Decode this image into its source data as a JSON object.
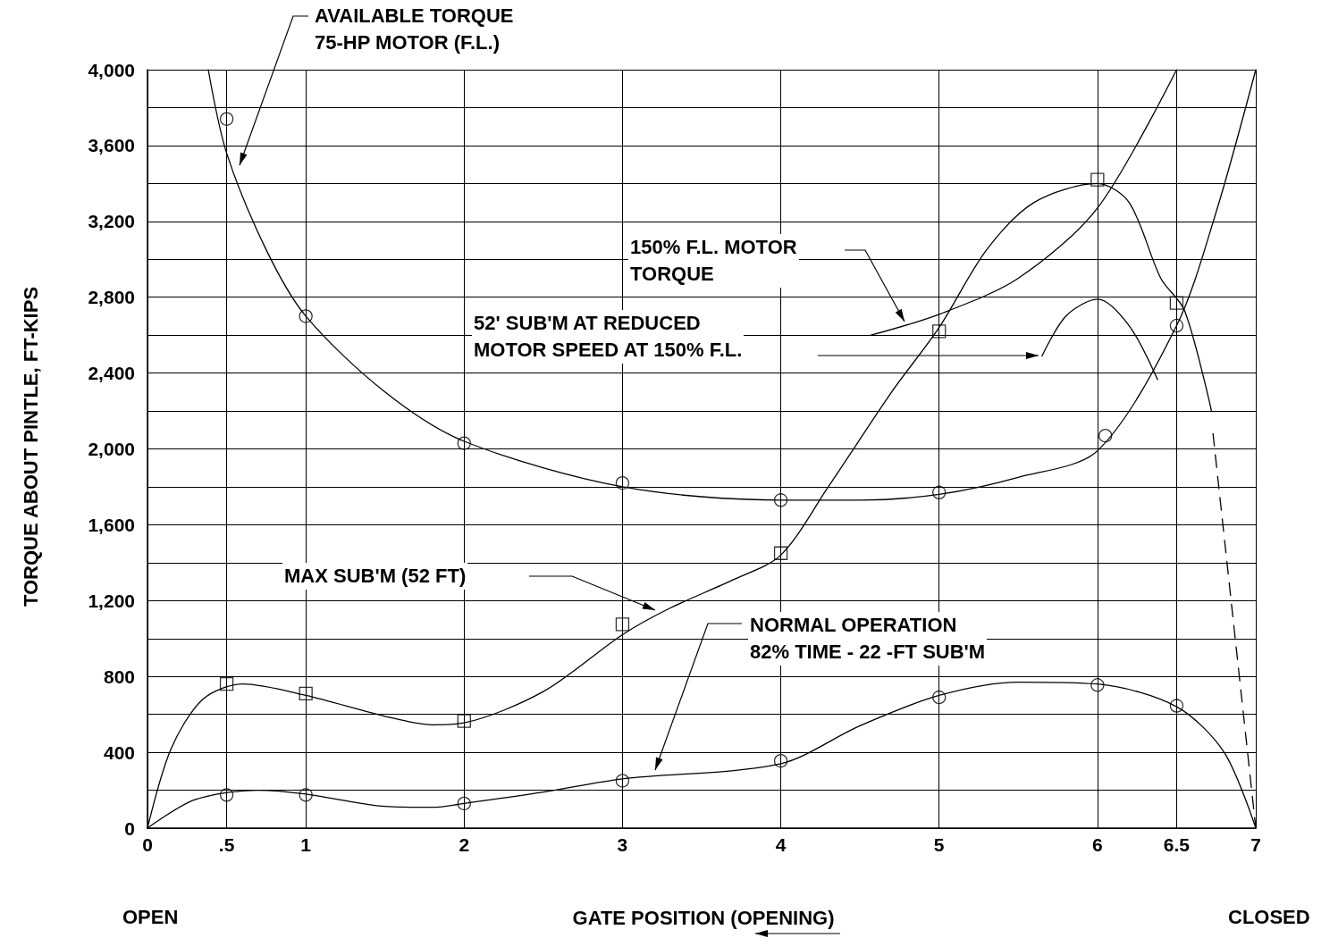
{
  "chart_data": {
    "type": "line",
    "xlabel": "GATE POSITION (OPENING)",
    "ylabel": "TORQUE ABOUT PINTLE, FT-KIPS",
    "xlim": [
      0,
      7
    ],
    "ylim": [
      0,
      4000
    ],
    "xticks": [
      0,
      {
        "value": 0.5,
        "label": ".5"
      },
      1,
      2,
      3,
      4,
      5,
      6,
      6.5,
      7
    ],
    "yticks": [
      0,
      {
        "value": 200,
        "label": null
      },
      400,
      {
        "value": 600,
        "label": null
      },
      800,
      {
        "value": 1000,
        "label": null
      },
      {
        "value": 1200,
        "label": "1,200"
      },
      {
        "value": 1400,
        "label": null
      },
      {
        "value": 1600,
        "label": "1,600"
      },
      {
        "value": 1800,
        "label": null
      },
      {
        "value": 2000,
        "label": "2,000"
      },
      {
        "value": 2200,
        "label": null
      },
      {
        "value": 2400,
        "label": "2,400"
      },
      {
        "value": 2600,
        "label": null
      },
      {
        "value": 2800,
        "label": "2,800"
      },
      {
        "value": 3000,
        "label": null
      },
      {
        "value": 3200,
        "label": "3,200"
      },
      {
        "value": 3400,
        "label": null
      },
      {
        "value": 3600,
        "label": "3,600"
      },
      {
        "value": 3800,
        "label": null
      },
      {
        "value": 4000,
        "label": "4,000"
      }
    ],
    "grid": true,
    "line_style": "solid",
    "series": [
      {
        "color": "#000000",
        "marker": "none",
        "x": [
          0.384,
          0.5,
          0.75,
          1,
          1.5,
          2,
          3,
          4,
          4.5,
          5,
          5.5,
          6,
          6.5,
          6.75,
          7
        ],
        "values": [
          4000,
          3560,
          3050,
          2700,
          2300,
          2040,
          1800,
          1730,
          1730,
          1760,
          1850,
          1990,
          2650,
          3250,
          4000
        ]
      },
      {
        "type": "scatter",
        "color": "#000000",
        "marker": "circle",
        "x": [
          0.5,
          1,
          2,
          3,
          4,
          5,
          6.05,
          6.5
        ],
        "values": [
          3740,
          2700,
          2030,
          1820,
          1730,
          1770,
          2070,
          2650
        ]
      },
      {
        "color": "#000000",
        "marker": "none",
        "x": [
          4.57,
          5,
          5.5,
          6,
          6.5
        ],
        "values": [
          2600,
          2710,
          2900,
          3270,
          4000
        ]
      },
      {
        "color": "#000000",
        "marker": "none",
        "x": [
          5.65,
          5.8,
          6,
          6.2,
          6.38
        ],
        "values": [
          2490,
          2700,
          2790,
          2650,
          2365
        ]
      },
      {
        "color": "#000000",
        "marker": "none",
        "x": [
          0,
          0.15,
          0.35,
          0.6,
          1,
          1.5,
          1.8,
          2,
          2.5,
          3,
          3.3,
          3.7,
          4,
          4.3,
          4.7,
          5,
          5.3,
          5.6,
          6,
          6.2,
          6.4,
          6.55,
          6.72
        ],
        "values": [
          0,
          420,
          680,
          760,
          700,
          590,
          545,
          555,
          720,
          1020,
          1160,
          1310,
          1440,
          1800,
          2300,
          2640,
          3050,
          3300,
          3400,
          3300,
          2900,
          2730,
          2200
        ]
      },
      {
        "color": "#000000",
        "marker": "none",
        "line_style": "dashed",
        "x": [
          6.73,
          7
        ],
        "values": [
          2080,
          0
        ]
      },
      {
        "type": "scatter",
        "color": "#000000",
        "marker": "square",
        "x": [
          0.5,
          1,
          2,
          3,
          4,
          5,
          6,
          6.5
        ],
        "values": [
          760,
          710,
          565,
          1075,
          1450,
          2620,
          3420,
          2770
        ]
      },
      {
        "color": "#000000",
        "marker": "none",
        "x": [
          0,
          0.3,
          0.7,
          1,
          1.5,
          1.8,
          2,
          2.5,
          3,
          4,
          4.5,
          5,
          5.5,
          6,
          6.5,
          6.8,
          7
        ],
        "values": [
          0,
          150,
          200,
          180,
          115,
          110,
          130,
          190,
          260,
          340,
          540,
          700,
          770,
          760,
          640,
          400,
          0
        ]
      },
      {
        "type": "scatter",
        "color": "#000000",
        "marker": "circle",
        "x": [
          0.5,
          1,
          2,
          3,
          4,
          5,
          6,
          6.5
        ],
        "values": [
          175,
          175,
          130,
          250,
          355,
          690,
          755,
          645
        ]
      }
    ],
    "annotations": [
      "AVAILABLE TORQUE\n75-HP MOTOR (F.L.)",
      "150% F.L. MOTOR\nTORQUE",
      "52' SUB'M AT REDUCED\nMOTOR SPEED AT 150% F.L.",
      "MAX SUB'M (52 FT)",
      "NORMAL OPERATION\n82% TIME - 22 -FT SUB'M",
      "OPEN",
      "CLOSED"
    ]
  }
}
